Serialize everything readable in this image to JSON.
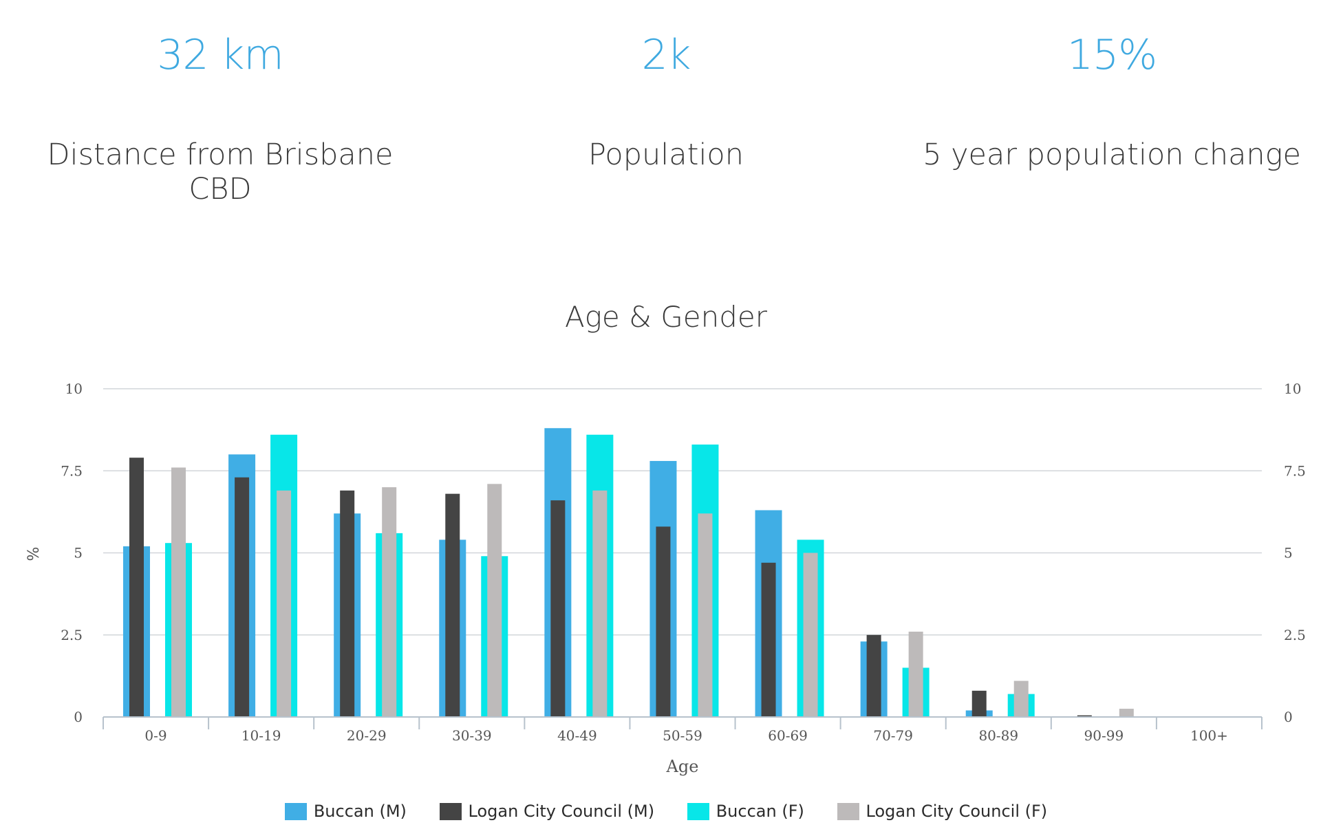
{
  "stats": [
    {
      "value": "32 km",
      "label": "Distance from Brisbane CBD"
    },
    {
      "value": "2k",
      "label": "Population"
    },
    {
      "value": "15%",
      "label": "5 year population change"
    }
  ],
  "colors": {
    "buccan_m": "#40aee5",
    "logan_m": "#444444",
    "buccan_f": "#08e6e8",
    "logan_f": "#bdbaba",
    "grid": "#d2d6da",
    "axis": "#b7c2cc",
    "tick_text": "#555555"
  },
  "chart_data": {
    "type": "bar",
    "title": "Age & Gender",
    "xlabel": "Age",
    "ylabel": "%",
    "ylim": [
      0,
      10
    ],
    "yticks": [
      "0",
      "2.5",
      "5",
      "7.5",
      "10"
    ],
    "categories": [
      "0-9",
      "10-19",
      "20-29",
      "30-39",
      "40-49",
      "50-59",
      "60-69",
      "70-79",
      "80-89",
      "90-99",
      "100+"
    ],
    "series": [
      {
        "name": "Buccan (M)",
        "values": [
          5.2,
          8.0,
          6.2,
          5.4,
          8.8,
          7.8,
          6.3,
          2.3,
          0.2,
          0,
          0
        ]
      },
      {
        "name": "Logan City Council (M)",
        "values": [
          7.9,
          7.3,
          6.9,
          6.8,
          6.6,
          5.8,
          4.7,
          2.5,
          0.8,
          0.05,
          0
        ]
      },
      {
        "name": "Buccan (F)",
        "values": [
          5.3,
          8.6,
          5.6,
          4.9,
          8.6,
          8.3,
          5.4,
          1.5,
          0.7,
          0,
          0
        ]
      },
      {
        "name": "Logan City Council (F)",
        "values": [
          7.6,
          6.9,
          7.0,
          7.1,
          6.9,
          6.2,
          5.0,
          2.6,
          1.1,
          0.25,
          0
        ]
      }
    ],
    "legend_position": "bottom"
  }
}
